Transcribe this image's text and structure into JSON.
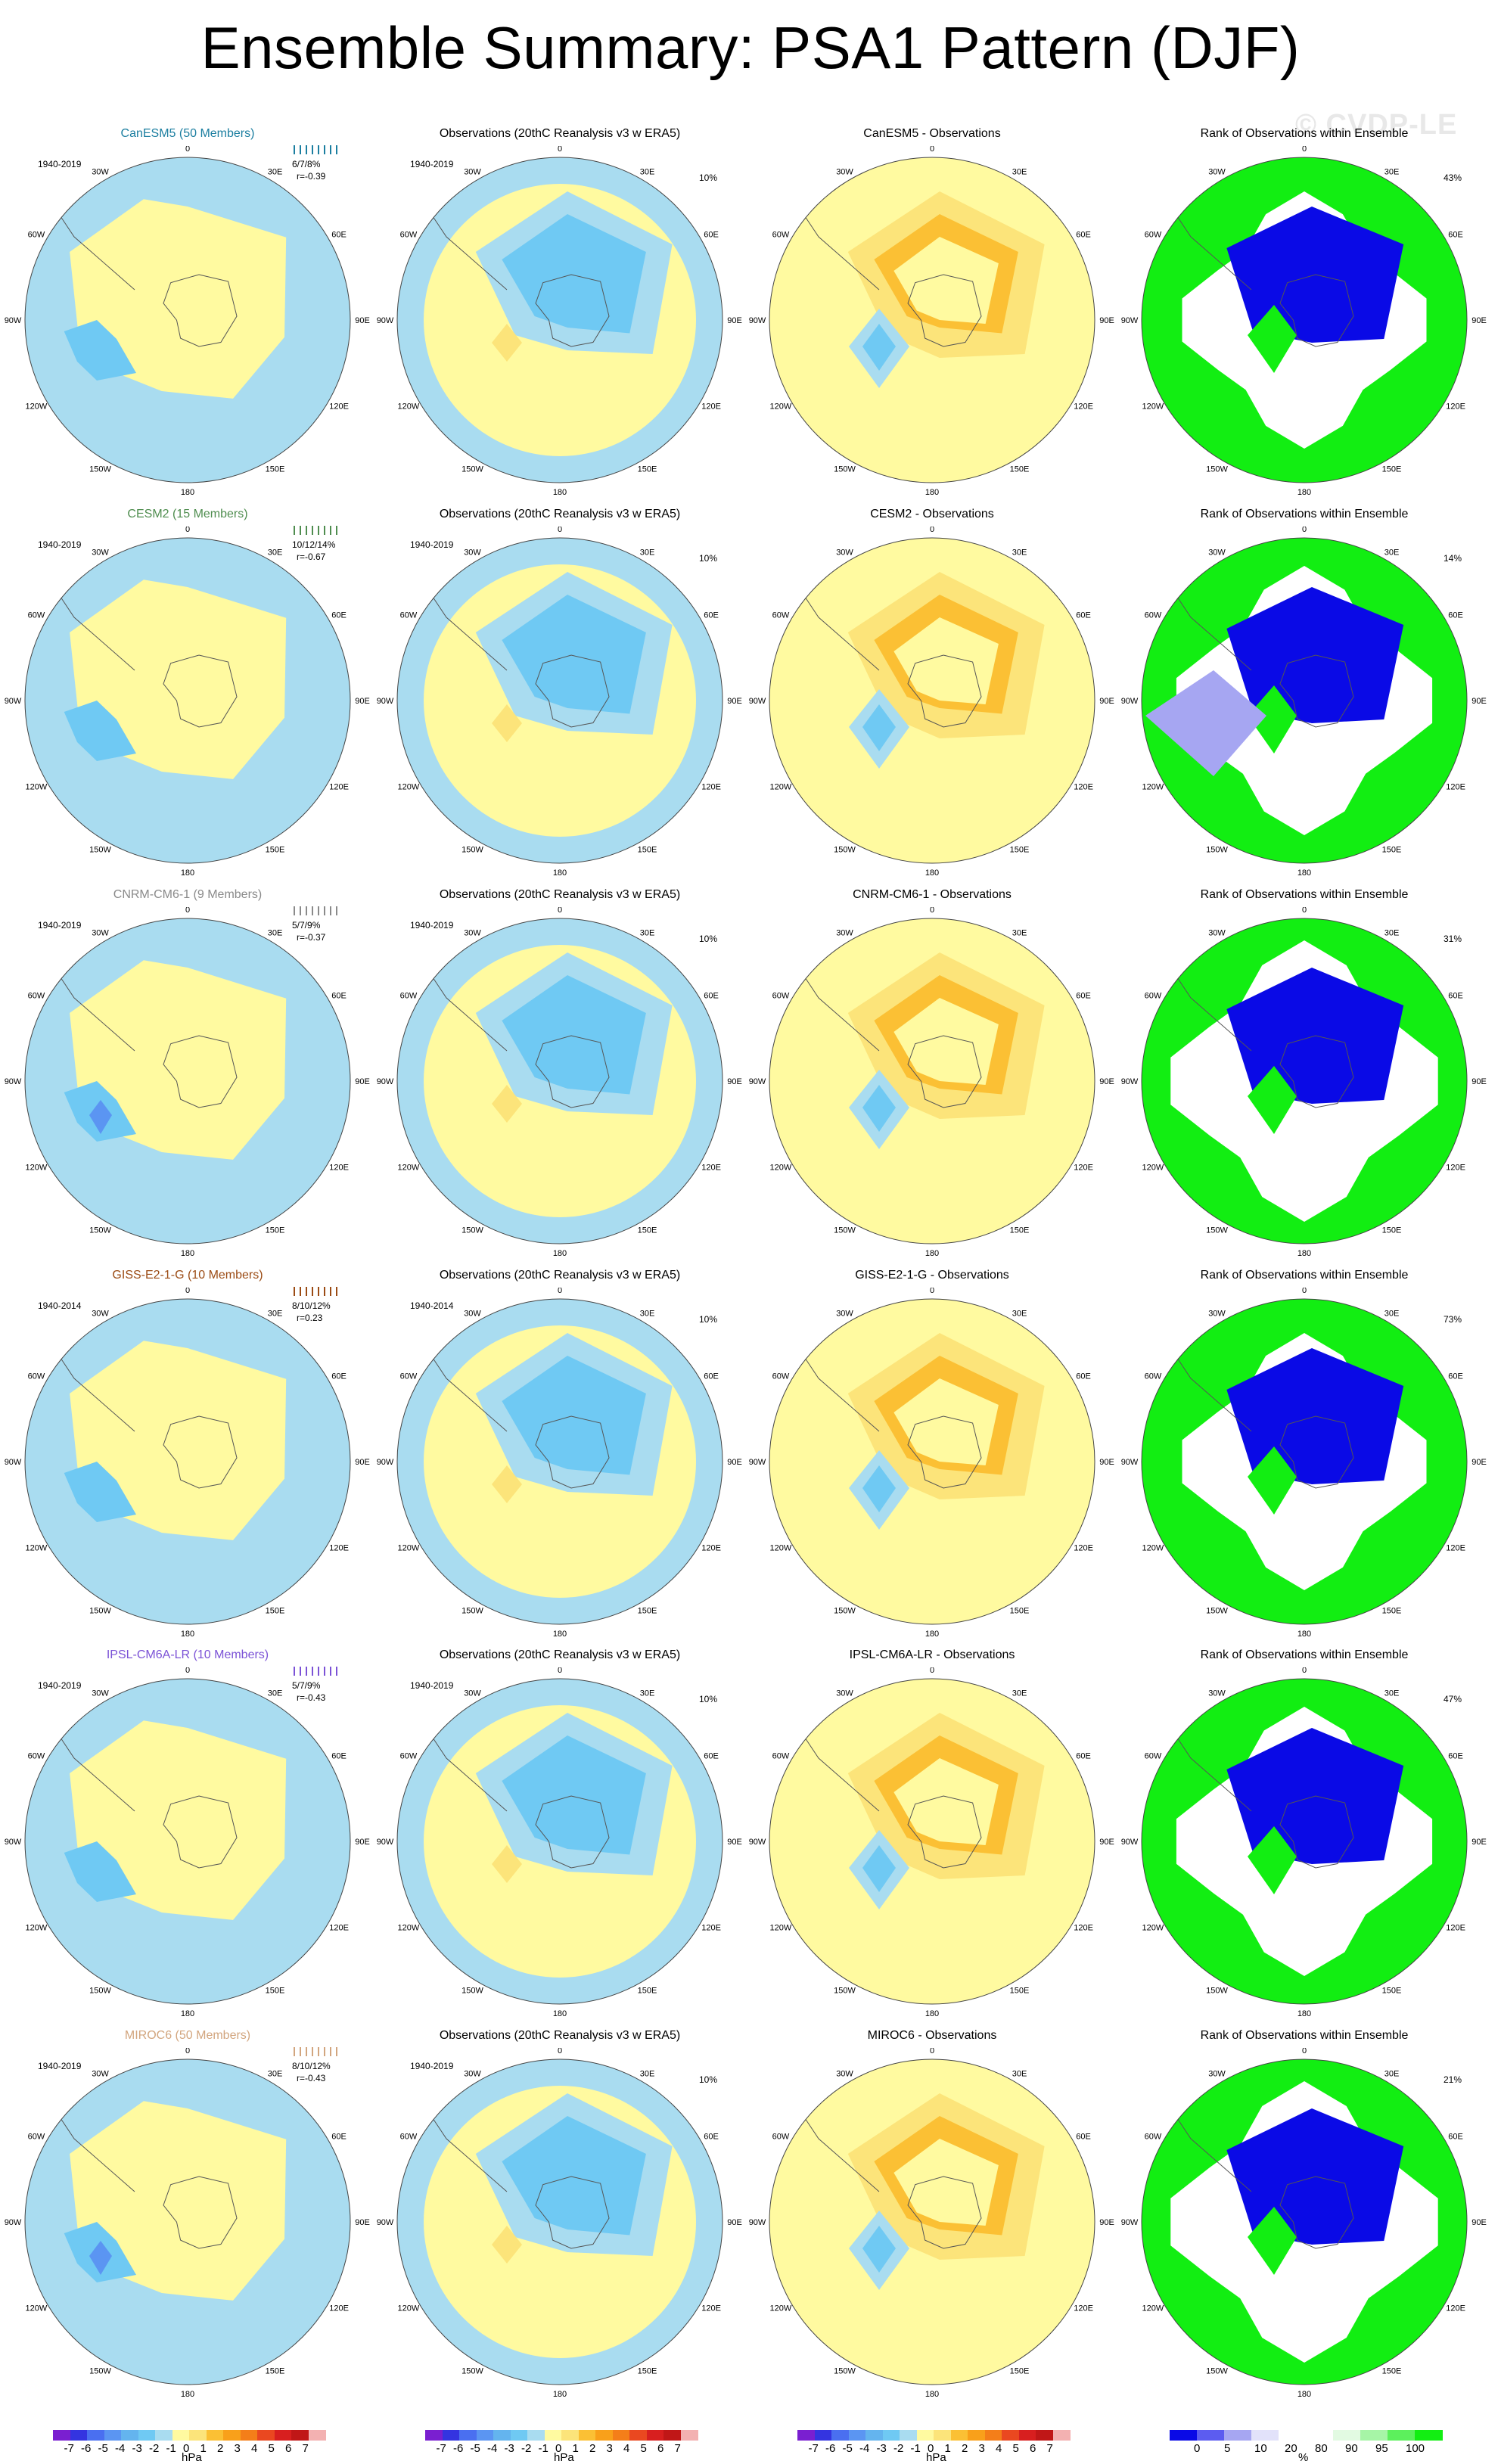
{
  "title": "Ensemble Summary: PSA1 Pattern (DJF)",
  "watermark": "© CVDP-LE",
  "obs_title": "Observations (20thC Reanalysis v3 w ERA5)",
  "rank_title": "Rank of Observations within Ensemble",
  "map_labels": [
    "0",
    "30E",
    "60E",
    "90E",
    "120E",
    "150E",
    "180",
    "150W",
    "120W",
    "90W",
    "60W",
    "30W"
  ],
  "rows": [
    {
      "model": "CanESM5",
      "members": "CanESM5 (50 Members)",
      "color": "#1b7ea0",
      "period": "1940-2019",
      "stat_pcts": "6/7/8%",
      "stat_r": "r=-0.39",
      "obs_period": "1940-2019",
      "obs_pct": "10%",
      "diff_title": "CanESM5 - Observations",
      "rank_pct": "43%"
    },
    {
      "model": "CESM2",
      "members": "CESM2 (15 Members)",
      "color": "#4f8d4f",
      "period": "1940-2019",
      "stat_pcts": "10/12/14%",
      "stat_r": "r=-0.67",
      "obs_period": "1940-2019",
      "obs_pct": "10%",
      "diff_title": "CESM2 - Observations",
      "rank_pct": "14%"
    },
    {
      "model": "CNRM-CM6-1",
      "members": "CNRM-CM6-1 (9 Members)",
      "color": "#8a8a8a",
      "period": "1940-2019",
      "stat_pcts": "5/7/9%",
      "stat_r": "r=-0.37",
      "obs_period": "1940-2019",
      "obs_pct": "10%",
      "diff_title": "CNRM-CM6-1 - Observations",
      "rank_pct": "31%"
    },
    {
      "model": "GISS-E2-1-G",
      "members": "GISS-E2-1-G (10 Members)",
      "color": "#9b4b14",
      "period": "1940-2014",
      "stat_pcts": "8/10/12%",
      "stat_r": "r=0.23",
      "obs_period": "1940-2014",
      "obs_pct": "10%",
      "diff_title": "GISS-E2-1-G - Observations",
      "rank_pct": "73%"
    },
    {
      "model": "IPSL-CM6A-LR",
      "members": "IPSL-CM6A-LR (10 Members)",
      "color": "#7b52d6",
      "period": "1940-2019",
      "stat_pcts": "5/7/9%",
      "stat_r": "r=-0.43",
      "obs_period": "1940-2019",
      "obs_pct": "10%",
      "diff_title": "IPSL-CM6A-LR - Observations",
      "rank_pct": "47%"
    },
    {
      "model": "MIROC6",
      "members": "MIROC6 (50 Members)",
      "color": "#d2a57e",
      "period": "1940-2019",
      "stat_pcts": "8/10/12%",
      "stat_r": "r=-0.43",
      "obs_period": "1940-2019",
      "obs_pct": "10%",
      "diff_title": "MIROC6 - Observations",
      "rank_pct": "21%"
    }
  ],
  "colorbar_hpa": {
    "colors": [
      "#7a1fd0",
      "#3434e0",
      "#4a6ff0",
      "#5b95f2",
      "#64b4ee",
      "#6fc9f3",
      "#a9dcf0",
      "#fffaa0",
      "#fce47a",
      "#fbc034",
      "#f9a01a",
      "#f47e19",
      "#ea4820",
      "#d81f1f",
      "#c01717",
      "#f3b1b1"
    ],
    "ticks": [
      "-7",
      "-6",
      "-5",
      "-4",
      "-3",
      "-2",
      "-1",
      "0",
      "1",
      "2",
      "3",
      "4",
      "5",
      "6",
      "7"
    ],
    "unit": "hPa"
  },
  "colorbar_rank": {
    "colors": [
      "#0a0ae6",
      "#5c5cf0",
      "#a6a6f2",
      "#e2e2fa",
      "#ffffff",
      "#ffffff",
      "#e2fae2",
      "#a6f5a6",
      "#5cf05c",
      "#12ee12"
    ],
    "ticks": [
      "0",
      "5",
      "10",
      "20",
      "80",
      "90",
      "95",
      "100"
    ],
    "unit": "%"
  },
  "chart_data": {
    "type": "heatmap",
    "title": "Ensemble Summary: PSA1 Pattern (DJF)",
    "unit": "hPa",
    "color_levels": [
      -7,
      -6,
      -5,
      -4,
      -3,
      -2,
      -1,
      0,
      1,
      2,
      3,
      4,
      5,
      6,
      7
    ],
    "rank_levels": [
      0,
      5,
      10,
      20,
      80,
      90,
      95,
      100
    ],
    "panels": [
      {
        "row": "CanESM5",
        "ensemble_pattern_pcts": "6/7/8%",
        "ensemble_r": -0.39,
        "rank_pct": 43
      },
      {
        "row": "CESM2",
        "ensemble_pattern_pcts": "10/12/14%",
        "ensemble_r": -0.67,
        "rank_pct": 14
      },
      {
        "row": "CNRM-CM6-1",
        "ensemble_pattern_pcts": "5/7/9%",
        "ensemble_r": -0.37,
        "rank_pct": 31
      },
      {
        "row": "GISS-E2-1-G",
        "ensemble_pattern_pcts": "8/10/12%",
        "ensemble_r": 0.23,
        "rank_pct": 73
      },
      {
        "row": "IPSL-CM6A-LR",
        "ensemble_pattern_pcts": "5/7/9%",
        "ensemble_r": -0.43,
        "rank_pct": 47
      },
      {
        "row": "MIROC6",
        "ensemble_pattern_pcts": "8/10/12%",
        "ensemble_r": -0.43,
        "rank_pct": 21
      }
    ]
  }
}
